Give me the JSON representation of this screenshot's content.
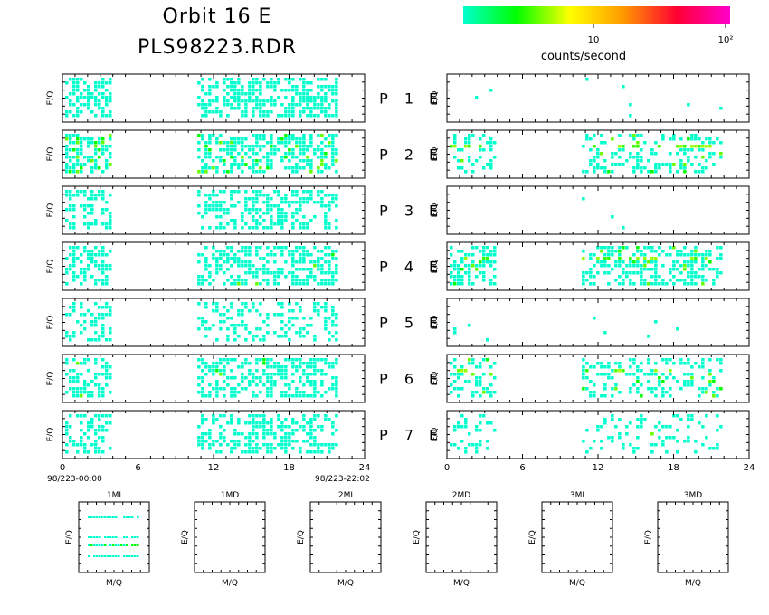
{
  "title": "Orbit 16 E",
  "subtitle": "PLS98223.RDR",
  "colorbar": {
    "tick_labels": [
      "10",
      "10²"
    ],
    "label": "counts/second",
    "colors": [
      "#00ffcc",
      "#00ff00",
      "#ffff00",
      "#ff9900",
      "#ff0033",
      "#ff00cc"
    ]
  },
  "panel_ylabel": "E/Q",
  "panel_rows": [
    {
      "label": "P",
      "num": "1",
      "e": "E"
    },
    {
      "label": "P",
      "num": "2",
      "e": "E"
    },
    {
      "label": "P",
      "num": "3",
      "e": "E"
    },
    {
      "label": "P",
      "num": "4",
      "e": "E"
    },
    {
      "label": "P",
      "num": "5",
      "e": "E"
    },
    {
      "label": "P",
      "num": "6",
      "e": "E"
    },
    {
      "label": "P",
      "num": "7",
      "e": "E"
    }
  ],
  "x_ticks": [
    "0",
    "6",
    "12",
    "18",
    "24"
  ],
  "x_start_label": "98/223-00:00",
  "x_end_label": "98/223-22:02",
  "chart_data": {
    "type": "heatmap",
    "x_range": [
      0,
      24
    ],
    "x_unit": "hours",
    "colorscale": "log counts/second",
    "data_intervals_hours": [
      [
        0,
        4
      ],
      [
        10.5,
        22
      ]
    ],
    "density_left": [
      0.55,
      0.55,
      0.45,
      0.5,
      0.3,
      0.5,
      0.45
    ],
    "density_right": [
      0.01,
      0.35,
      0.005,
      0.5,
      0.02,
      0.35,
      0.2
    ],
    "green_left": [
      0,
      0.15,
      0,
      0.02,
      0,
      0.02,
      0
    ],
    "green_right": [
      0,
      0.12,
      0,
      0.06,
      0,
      0.1,
      0.02
    ]
  },
  "mq_panels": [
    {
      "title": "1MI",
      "ylabel": "E/Q",
      "xlabel": "M/Q"
    },
    {
      "title": "1MD",
      "ylabel": "E/Q",
      "xlabel": "M/Q"
    },
    {
      "title": "2MI",
      "ylabel": "E/Q",
      "xlabel": "M/Q"
    },
    {
      "title": "2MD",
      "ylabel": "E/Q",
      "xlabel": "M/Q"
    },
    {
      "title": "3MI",
      "ylabel": "E/Q",
      "xlabel": "M/Q"
    },
    {
      "title": "3MD",
      "ylabel": "E/Q",
      "xlabel": "M/Q"
    }
  ]
}
